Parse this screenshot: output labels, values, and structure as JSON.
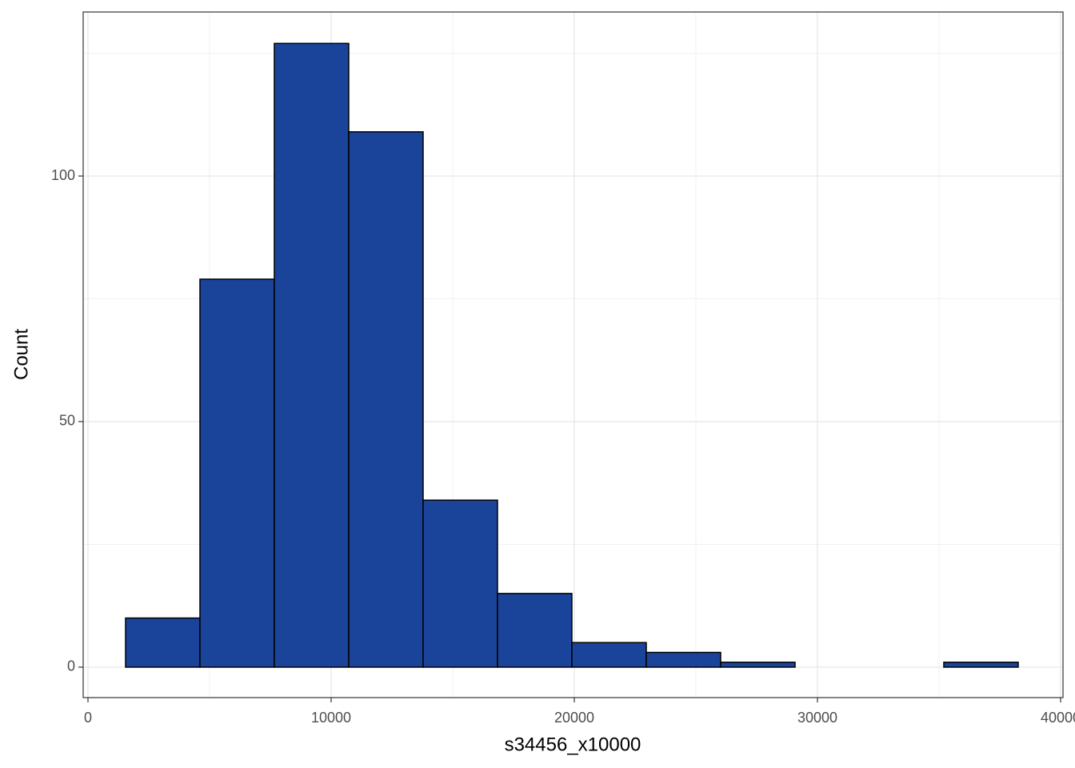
{
  "chart_data": {
    "type": "histogram",
    "x_label": "s34456_x10000",
    "y_label": "Count",
    "bins": [
      1546,
      4605,
      7664,
      10724,
      13783,
      16842,
      19901,
      22961,
      26020,
      29079,
      32138,
      35197,
      38257
    ],
    "counts": [
      10,
      79,
      127,
      109,
      34,
      15,
      5,
      3,
      1,
      0,
      0,
      1
    ],
    "color": "#19449a",
    "edge_color": "#000000",
    "xlim": [
      -197,
      40099
    ],
    "ylim": [
      -6.2,
      133.4
    ],
    "xticks": [
      0,
      10000,
      20000,
      30000,
      40000
    ],
    "yticks": [
      0,
      50,
      100
    ],
    "x_minor_grid": [
      5000,
      15000,
      25000,
      35000
    ],
    "y_minor_grid": [
      25,
      75,
      125
    ],
    "grid": true
  }
}
